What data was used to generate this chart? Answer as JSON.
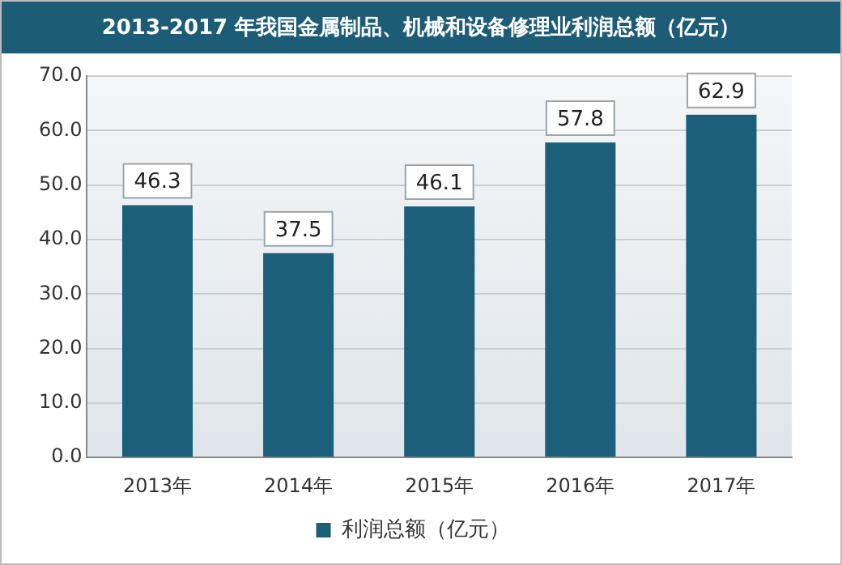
{
  "chart_data": {
    "type": "bar",
    "title": "2013-2017 年我国金属制品、机械和设备修理业利润总额（亿元）",
    "categories": [
      "2013年",
      "2014年",
      "2015年",
      "2016年",
      "2017年"
    ],
    "series": [
      {
        "name": "利润总额（亿元）",
        "color": "#1b5f7b",
        "values": [
          46.3,
          37.5,
          46.1,
          57.8,
          62.9
        ]
      }
    ],
    "ylim": [
      0,
      70
    ],
    "yticks": [
      {
        "value": 0,
        "label": "0.0"
      },
      {
        "value": 10,
        "label": "10.0"
      },
      {
        "value": 20,
        "label": "20.0"
      },
      {
        "value": 30,
        "label": "30.0"
      },
      {
        "value": 40,
        "label": "40.0"
      },
      {
        "value": 50,
        "label": "50.0"
      },
      {
        "value": 60,
        "label": "60.0"
      },
      {
        "value": 70,
        "label": "70.0"
      }
    ],
    "grid": "y",
    "legend": "bottom",
    "data_labels": true
  }
}
